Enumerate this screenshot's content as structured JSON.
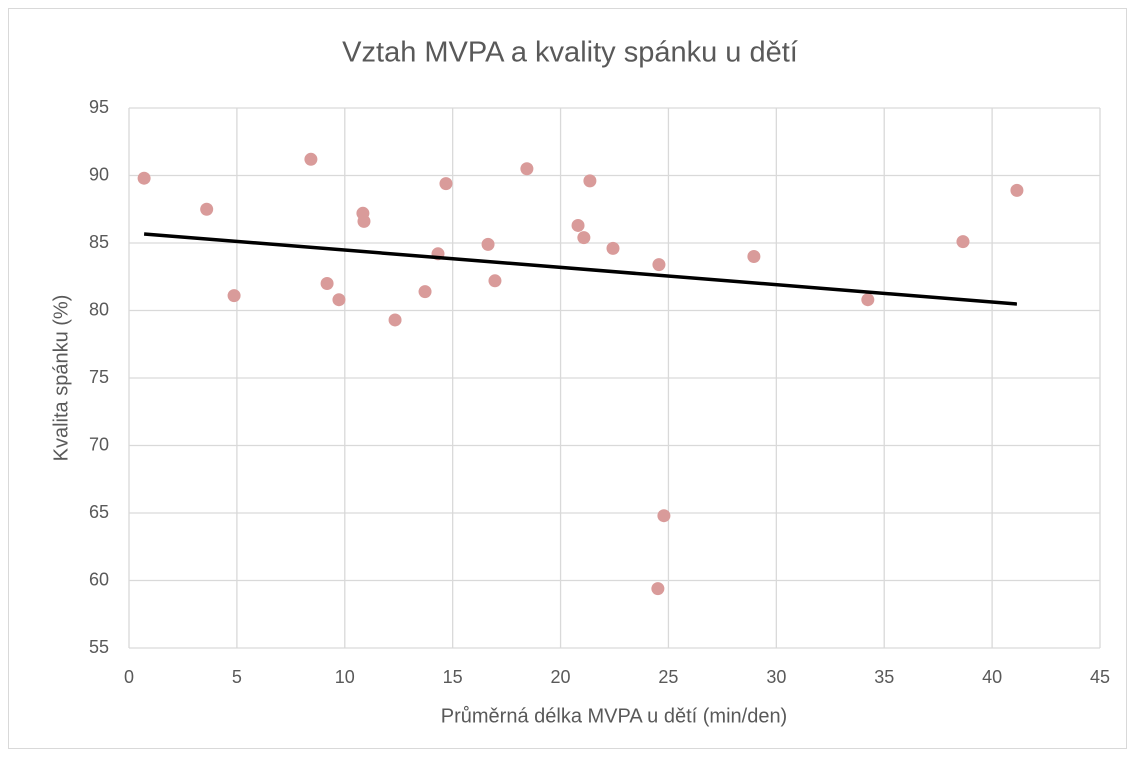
{
  "chart_data": {
    "type": "scatter",
    "title": "Vztah MVPA a kvality spánku u dětí",
    "xlabel": "Průměrná délka MVPA u dětí (min/den)",
    "ylabel": "Kvalita spánku (%)",
    "series": [
      {
        "color": "#d99b9a",
        "x": [
          0.7,
          3.6,
          4.87,
          8.43,
          9.18,
          9.73,
          10.84,
          10.89,
          12.33,
          13.72,
          14.32,
          14.69,
          16.64,
          16.96,
          18.44,
          20.81,
          21.08,
          21.36,
          22.43,
          24.56,
          24.79,
          24.51,
          28.96,
          34.24,
          38.65,
          41.15
        ],
        "values": [
          89.8,
          87.5,
          81.1,
          91.2,
          82.0,
          80.8,
          87.2,
          86.6,
          79.3,
          81.4,
          84.2,
          89.4,
          84.9,
          82.2,
          90.5,
          86.3,
          85.4,
          89.6,
          84.6,
          83.4,
          64.8,
          59.4,
          84.0,
          80.8,
          85.1,
          88.9
        ]
      }
    ],
    "trendline": {
      "color": "#000000",
      "x": [
        0.7,
        41.15
      ],
      "values": [
        85.67,
        80.48
      ]
    },
    "xlim": [
      0,
      45
    ],
    "xticks": [
      0,
      5,
      10,
      15,
      20,
      25,
      30,
      35,
      40,
      45
    ],
    "ylim": [
      55,
      95
    ],
    "yticks": [
      55,
      60,
      65,
      70,
      75,
      80,
      85,
      90,
      95
    ],
    "grid": true
  }
}
